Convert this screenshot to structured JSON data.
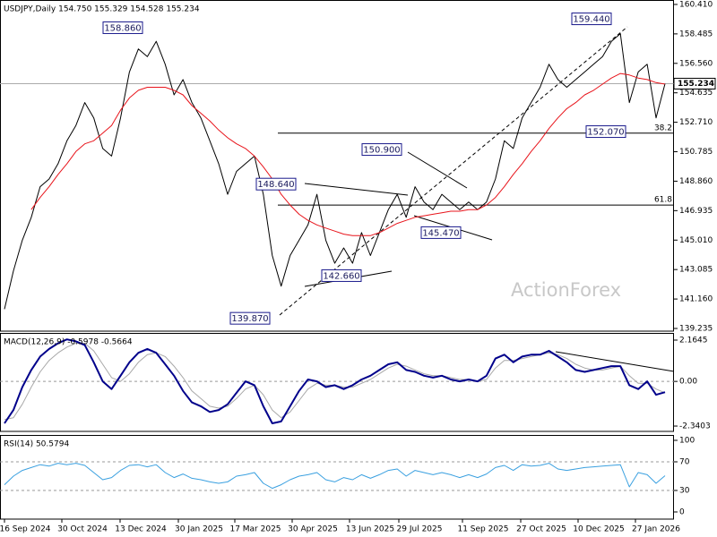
{
  "chart_data": [
    {
      "type": "line",
      "title": "USDJPY,Daily 154.750 155.329 154.528 155.234",
      "ylim": [
        139.06,
        160.7
      ],
      "yticks": [
        {
          "value": 160.41,
          "label": "160.410"
        },
        158.485,
        {
          "value": 156.56,
          "label": "156.560"
        },
        154.635,
        {
          "value": 152.71,
          "label": "152.710"
        },
        150.785,
        {
          "value": 148.86,
          "label": "148.860"
        },
        146.935,
        {
          "value": 145.01,
          "label": "145.010"
        },
        143.085,
        {
          "value": 141.16,
          "label": "141.160"
        },
        139.235
      ],
      "grid": false,
      "watermark": "ActionForex",
      "series": [
        {
          "name": "USDJPY",
          "color": "#000000",
          "values": [
            140.5,
            143,
            145,
            146.5,
            148.5,
            149,
            150,
            151.5,
            152.5,
            154,
            153,
            151,
            150.5,
            153,
            156,
            157.5,
            157,
            158,
            156.5,
            154.5,
            155.5,
            154,
            153,
            151.5,
            150,
            148,
            149.5,
            150,
            150.5,
            148,
            144,
            142,
            144,
            145,
            146,
            148,
            145,
            143.5,
            144.5,
            143.5,
            145.5,
            144,
            145.5,
            147,
            148,
            146.5,
            148.5,
            147.5,
            147,
            148,
            147.5,
            147,
            147.5,
            147,
            147.5,
            149,
            151.5,
            151,
            153,
            154,
            155,
            156.5,
            155.5,
            155,
            155.5,
            156,
            156.5,
            157,
            158,
            158.5,
            154,
            156,
            156.5,
            153,
            155.234
          ]
        },
        {
          "name": "MA",
          "color": "#e8141b",
          "values": [
            null,
            null,
            null,
            147,
            147.8,
            148.5,
            149.3,
            150,
            150.8,
            151.3,
            151.5,
            152,
            152.5,
            153.5,
            154.3,
            154.8,
            155,
            155,
            155,
            154.8,
            154.5,
            153.8,
            153.3,
            152.8,
            152.2,
            151.7,
            151.3,
            151,
            150.5,
            149.8,
            149,
            148,
            147.3,
            146.7,
            146.3,
            146,
            145.8,
            145.6,
            145.4,
            145.3,
            145.3,
            145.3,
            145.5,
            145.8,
            146.1,
            146.3,
            146.5,
            146.6,
            146.7,
            146.8,
            146.9,
            146.9,
            147,
            147,
            147.3,
            147.8,
            148.5,
            149.3,
            150,
            150.8,
            151.5,
            152.3,
            153,
            153.6,
            154,
            154.5,
            154.8,
            155.2,
            155.6,
            155.9,
            155.8,
            155.6,
            155.5,
            155.3,
            155.2
          ]
        }
      ],
      "annotations": [
        {
          "label": "158.860",
          "value": 158.86
        },
        {
          "label": "159.440",
          "value": 159.44
        },
        {
          "label": "150.900",
          "value": 150.9
        },
        {
          "label": "148.640",
          "value": 148.64
        },
        {
          "label": "145.470",
          "value": 145.47
        },
        {
          "label": "142.660",
          "value": 142.66
        },
        {
          "label": "139.870",
          "value": 139.87
        },
        {
          "label": "152.070",
          "value": 152.07
        }
      ],
      "levels": [
        {
          "label": "38.2",
          "value": 152.0
        },
        {
          "label": "61.8",
          "value": 147.3
        }
      ]
    },
    {
      "type": "line",
      "title": "MACD(12,26,9) -0.5978 -0.5664",
      "ylim": [
        -2.62,
        2.54
      ],
      "yticks": [
        2.1645,
        {
          "value": 0,
          "label": "0.00"
        },
        -2.3403
      ],
      "grid": true,
      "series": [
        {
          "name": "MACD",
          "color": "#00008b",
          "values": [
            -2.2,
            -1.5,
            -0.3,
            0.6,
            1.3,
            1.7,
            2.0,
            2.2,
            2.1,
            1.9,
            1.0,
            0.0,
            -0.4,
            0.3,
            1.0,
            1.5,
            1.7,
            1.5,
            0.9,
            0.3,
            -0.5,
            -1.1,
            -1.3,
            -1.6,
            -1.5,
            -1.2,
            -0.6,
            0.0,
            -0.2,
            -1.3,
            -2.2,
            -2.1,
            -1.3,
            -0.5,
            0.1,
            0.0,
            -0.3,
            -0.2,
            -0.4,
            -0.2,
            0.1,
            0.3,
            0.6,
            0.9,
            1.0,
            0.6,
            0.5,
            0.3,
            0.2,
            0.3,
            0.1,
            0.0,
            0.1,
            0.0,
            0.3,
            1.2,
            1.4,
            1.0,
            1.3,
            1.4,
            1.4,
            1.6,
            1.3,
            1.0,
            0.6,
            0.5,
            0.6,
            0.7,
            0.8,
            0.8,
            -0.2,
            -0.4,
            0.0,
            -0.7,
            -0.5664
          ]
        },
        {
          "name": "Signal",
          "color": "#a8a8a8",
          "values": [
            -2.0,
            -1.9,
            -1.2,
            -0.3,
            0.5,
            1.1,
            1.5,
            1.8,
            2.0,
            2.0,
            1.6,
            0.9,
            0.2,
            0.0,
            0.4,
            1.0,
            1.4,
            1.5,
            1.3,
            0.8,
            0.2,
            -0.5,
            -0.9,
            -1.3,
            -1.4,
            -1.3,
            -0.9,
            -0.4,
            -0.2,
            -0.7,
            -1.5,
            -1.9,
            -1.6,
            -1.0,
            -0.4,
            -0.1,
            -0.2,
            -0.2,
            -0.3,
            -0.3,
            -0.1,
            0.1,
            0.4,
            0.7,
            0.9,
            0.8,
            0.6,
            0.4,
            0.3,
            0.3,
            0.2,
            0.1,
            0.1,
            0.0,
            0.1,
            0.7,
            1.1,
            1.1,
            1.2,
            1.3,
            1.4,
            1.5,
            1.4,
            1.2,
            0.9,
            0.7,
            0.6,
            0.6,
            0.7,
            0.8,
            0.3,
            -0.1,
            -0.1,
            -0.4,
            -0.5978
          ]
        }
      ]
    },
    {
      "type": "line",
      "title": "RSI(14) 50.5794",
      "ylim": [
        -10,
        107.5
      ],
      "yticks": [
        100,
        70,
        30,
        0
      ],
      "grid": true,
      "x_labels": [
        "16 Sep 2024",
        "30 Oct 2024",
        "13 Dec 2024",
        "30 Jan 2025",
        "17 Mar 2025",
        "30 Apr 2025",
        "13 Jun 2025",
        "29 Jul 2025",
        "11 Sep 2025",
        "27 Oct 2025",
        "10 Dec 2025",
        "27 Jan 2026"
      ],
      "series": [
        {
          "name": "RSI",
          "color": "#3aa0e0",
          "values": [
            38,
            50,
            58,
            62,
            66,
            64,
            68,
            66,
            68,
            65,
            55,
            45,
            48,
            58,
            65,
            66,
            63,
            66,
            55,
            48,
            53,
            47,
            45,
            42,
            40,
            42,
            50,
            52,
            55,
            40,
            33,
            38,
            45,
            50,
            52,
            55,
            45,
            42,
            48,
            45,
            52,
            47,
            52,
            58,
            60,
            50,
            58,
            55,
            52,
            55,
            52,
            48,
            52,
            48,
            53,
            62,
            65,
            58,
            66,
            64,
            65,
            68,
            60,
            58,
            60,
            62,
            63,
            64,
            65,
            66,
            35,
            55,
            52,
            40,
            50.5794
          ]
        }
      ]
    }
  ]
}
